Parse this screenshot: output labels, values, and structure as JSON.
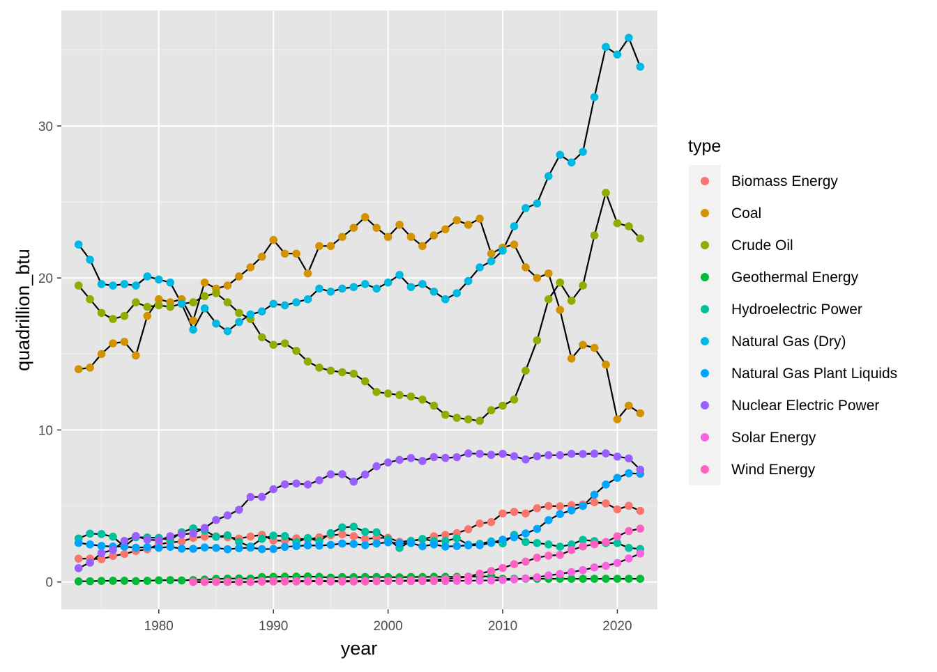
{
  "chart_data": {
    "type": "line",
    "xlabel": "year",
    "ylabel": "quadrillion_btu",
    "xlim": [
      1971.5,
      2023.5
    ],
    "ylim": [
      -1.8,
      37.6
    ],
    "x_ticks": [
      1980,
      1990,
      2000,
      2010,
      2020
    ],
    "y_ticks": [
      0,
      10,
      20,
      30
    ],
    "x_tick_labels": [
      "1980",
      "1990",
      "2000",
      "2010",
      "2020"
    ],
    "y_tick_labels": [
      "0",
      "10",
      "20",
      "30"
    ],
    "grid": true,
    "panel_background": "#e5e5e5",
    "line_color": "#000000",
    "legend": {
      "title": "type",
      "position": "right"
    },
    "series": [
      {
        "name": "Biomass Energy",
        "color": "#F8766D",
        "x": [
          1973,
          1974,
          1975,
          1976,
          1977,
          1978,
          1979,
          1980,
          1981,
          1982,
          1983,
          1984,
          1985,
          1986,
          1987,
          1988,
          1989,
          1990,
          1991,
          1992,
          1993,
          1994,
          1995,
          1996,
          1997,
          1998,
          1999,
          2000,
          2001,
          2002,
          2003,
          2004,
          2005,
          2006,
          2007,
          2008,
          2009,
          2010,
          2011,
          2012,
          2013,
          2014,
          2015,
          2016,
          2017,
          2018,
          2019,
          2020,
          2021,
          2022
        ],
        "y": [
          1.53,
          1.54,
          1.5,
          1.71,
          1.84,
          2.04,
          2.15,
          2.48,
          2.6,
          2.66,
          2.9,
          2.98,
          3.0,
          2.94,
          2.86,
          2.99,
          3.1,
          2.73,
          2.71,
          2.87,
          2.79,
          2.94,
          3.07,
          3.13,
          3.01,
          2.83,
          2.89,
          2.91,
          2.64,
          2.71,
          2.8,
          3.0,
          3.1,
          3.21,
          3.47,
          3.85,
          3.94,
          4.51,
          4.61,
          4.51,
          4.85,
          5.0,
          4.98,
          5.05,
          5.1,
          5.24,
          5.17,
          4.78,
          5.01,
          4.68
        ]
      },
      {
        "name": "Coal",
        "color": "#D39200",
        "x": [
          1973,
          1974,
          1975,
          1976,
          1977,
          1978,
          1979,
          1980,
          1981,
          1982,
          1983,
          1984,
          1985,
          1986,
          1987,
          1988,
          1989,
          1990,
          1991,
          1992,
          1993,
          1994,
          1995,
          1996,
          1997,
          1998,
          1999,
          2000,
          2001,
          2002,
          2003,
          2004,
          2005,
          2006,
          2007,
          2008,
          2009,
          2010,
          2011,
          2012,
          2013,
          2014,
          2015,
          2016,
          2017,
          2018,
          2019,
          2020,
          2021,
          2022
        ],
        "y": [
          14.0,
          14.1,
          15.0,
          15.7,
          15.8,
          14.9,
          17.5,
          18.6,
          18.4,
          18.6,
          17.2,
          19.7,
          19.3,
          19.5,
          20.1,
          20.7,
          21.4,
          22.5,
          21.6,
          21.6,
          20.3,
          22.1,
          22.1,
          22.7,
          23.3,
          24.0,
          23.3,
          22.7,
          23.5,
          22.7,
          22.1,
          22.8,
          23.2,
          23.8,
          23.5,
          23.9,
          21.6,
          22.0,
          22.2,
          20.7,
          20.0,
          20.3,
          17.9,
          14.7,
          15.6,
          15.4,
          14.3,
          10.7,
          11.6,
          11.1
        ]
      },
      {
        "name": "Crude Oil",
        "color": "#93AA00",
        "x": [
          1973,
          1974,
          1975,
          1976,
          1977,
          1978,
          1979,
          1980,
          1981,
          1982,
          1983,
          1984,
          1985,
          1986,
          1987,
          1988,
          1989,
          1990,
          1991,
          1992,
          1993,
          1994,
          1995,
          1996,
          1997,
          1998,
          1999,
          2000,
          2001,
          2002,
          2003,
          2004,
          2005,
          2006,
          2007,
          2008,
          2009,
          2010,
          2011,
          2012,
          2013,
          2014,
          2015,
          2016,
          2017,
          2018,
          2019,
          2020,
          2021,
          2022
        ],
        "y": [
          19.5,
          18.6,
          17.7,
          17.3,
          17.5,
          18.4,
          18.1,
          18.2,
          18.1,
          18.3,
          18.4,
          18.8,
          19.0,
          18.4,
          17.7,
          17.3,
          16.1,
          15.6,
          15.7,
          15.2,
          14.5,
          14.1,
          13.9,
          13.8,
          13.7,
          13.2,
          12.5,
          12.4,
          12.3,
          12.2,
          12.0,
          11.6,
          11.0,
          10.8,
          10.7,
          10.6,
          11.3,
          11.6,
          12.0,
          13.9,
          15.9,
          18.6,
          19.7,
          18.5,
          19.5,
          22.8,
          25.6,
          23.6,
          23.4,
          22.6
        ]
      },
      {
        "name": "Geothermal Energy",
        "color": "#00BA38",
        "x": [
          1973,
          1974,
          1975,
          1976,
          1977,
          1978,
          1979,
          1980,
          1981,
          1982,
          1983,
          1984,
          1985,
          1986,
          1987,
          1988,
          1989,
          1990,
          1991,
          1992,
          1993,
          1994,
          1995,
          1996,
          1997,
          1998,
          1999,
          2000,
          2001,
          2002,
          2003,
          2004,
          2005,
          2006,
          2007,
          2008,
          2009,
          2010,
          2011,
          2012,
          2013,
          2014,
          2015,
          2016,
          2017,
          2018,
          2019,
          2020,
          2021,
          2022
        ],
        "y": [
          0.04,
          0.05,
          0.07,
          0.08,
          0.08,
          0.06,
          0.08,
          0.11,
          0.12,
          0.1,
          0.13,
          0.16,
          0.2,
          0.22,
          0.23,
          0.22,
          0.32,
          0.34,
          0.35,
          0.35,
          0.36,
          0.34,
          0.29,
          0.32,
          0.32,
          0.33,
          0.33,
          0.32,
          0.31,
          0.33,
          0.33,
          0.34,
          0.34,
          0.34,
          0.35,
          0.36,
          0.37,
          0.21,
          0.21,
          0.21,
          0.21,
          0.21,
          0.21,
          0.21,
          0.21,
          0.21,
          0.21,
          0.21,
          0.21,
          0.21
        ]
      },
      {
        "name": "Hydroelectric Power",
        "color": "#00C19F",
        "x": [
          1973,
          1974,
          1975,
          1976,
          1977,
          1978,
          1979,
          1980,
          1981,
          1982,
          1983,
          1984,
          1985,
          1986,
          1987,
          1988,
          1989,
          1990,
          1991,
          1992,
          1993,
          1994,
          1995,
          1996,
          1997,
          1998,
          1999,
          2000,
          2001,
          2002,
          2003,
          2004,
          2005,
          2006,
          2007,
          2008,
          2009,
          2010,
          2011,
          2012,
          2013,
          2014,
          2015,
          2016,
          2017,
          2018,
          2019,
          2020,
          2021,
          2022
        ],
        "y": [
          2.86,
          3.18,
          3.15,
          2.98,
          2.33,
          2.94,
          2.93,
          2.9,
          2.76,
          3.27,
          3.53,
          3.39,
          2.97,
          3.07,
          2.63,
          2.33,
          2.84,
          3.05,
          3.02,
          2.62,
          2.89,
          2.68,
          3.21,
          3.59,
          3.64,
          3.3,
          3.27,
          2.81,
          2.24,
          2.69,
          2.83,
          2.69,
          2.7,
          2.87,
          2.45,
          2.51,
          2.67,
          2.54,
          3.1,
          2.63,
          2.56,
          2.47,
          2.32,
          2.47,
          2.77,
          2.69,
          2.56,
          2.56,
          2.24,
          2.17
        ]
      },
      {
        "name": "Natural Gas (Dry)",
        "color": "#00B9E3",
        "x": [
          1973,
          1974,
          1975,
          1976,
          1977,
          1978,
          1979,
          1980,
          1981,
          1982,
          1983,
          1984,
          1985,
          1986,
          1987,
          1988,
          1989,
          1990,
          1991,
          1992,
          1993,
          1994,
          1995,
          1996,
          1997,
          1998,
          1999,
          2000,
          2001,
          2002,
          2003,
          2004,
          2005,
          2006,
          2007,
          2008,
          2009,
          2010,
          2011,
          2012,
          2013,
          2014,
          2015,
          2016,
          2017,
          2018,
          2019,
          2020,
          2021,
          2022
        ],
        "y": [
          22.2,
          21.2,
          19.6,
          19.5,
          19.6,
          19.5,
          20.1,
          19.9,
          19.7,
          18.3,
          16.6,
          18.0,
          17.0,
          16.5,
          17.1,
          17.6,
          17.8,
          18.3,
          18.2,
          18.4,
          18.6,
          19.3,
          19.1,
          19.3,
          19.4,
          19.6,
          19.3,
          19.7,
          20.2,
          19.4,
          19.6,
          19.1,
          18.6,
          19.0,
          19.8,
          20.7,
          21.1,
          21.8,
          23.4,
          24.6,
          24.9,
          26.7,
          28.1,
          27.6,
          28.3,
          31.9,
          35.2,
          34.7,
          35.8,
          33.9
        ]
      },
      {
        "name": "Natural Gas Plant Liquids",
        "color": "#00A5FF",
        "x": [
          1973,
          1974,
          1975,
          1976,
          1977,
          1978,
          1979,
          1980,
          1981,
          1982,
          1983,
          1984,
          1985,
          1986,
          1987,
          1988,
          1989,
          1990,
          1991,
          1992,
          1993,
          1994,
          1995,
          1996,
          1997,
          1998,
          1999,
          2000,
          2001,
          2002,
          2003,
          2004,
          2005,
          2006,
          2007,
          2008,
          2009,
          2010,
          2011,
          2012,
          2013,
          2014,
          2015,
          2016,
          2017,
          2018,
          2019,
          2020,
          2021,
          2022
        ],
        "y": [
          2.57,
          2.47,
          2.37,
          2.33,
          2.33,
          2.25,
          2.29,
          2.25,
          2.31,
          2.19,
          2.18,
          2.27,
          2.24,
          2.15,
          2.22,
          2.26,
          2.16,
          2.17,
          2.31,
          2.36,
          2.41,
          2.39,
          2.44,
          2.53,
          2.5,
          2.42,
          2.53,
          2.61,
          2.55,
          2.56,
          2.35,
          2.47,
          2.33,
          2.36,
          2.41,
          2.42,
          2.57,
          2.78,
          2.94,
          3.19,
          3.49,
          4.07,
          4.47,
          4.71,
          5.0,
          5.74,
          6.41,
          6.85,
          7.15,
          7.12
        ]
      },
      {
        "name": "Nuclear Electric Power",
        "color": "#995FFF",
        "x": [
          1973,
          1974,
          1975,
          1976,
          1977,
          1978,
          1979,
          1980,
          1981,
          1982,
          1983,
          1984,
          1985,
          1986,
          1987,
          1988,
          1989,
          1990,
          1991,
          1992,
          1993,
          1994,
          1995,
          1996,
          1997,
          1998,
          1999,
          2000,
          2001,
          2002,
          2003,
          2004,
          2005,
          2006,
          2007,
          2008,
          2009,
          2010,
          2011,
          2012,
          2013,
          2014,
          2015,
          2016,
          2017,
          2018,
          2019,
          2020,
          2021,
          2022
        ],
        "y": [
          0.91,
          1.27,
          1.9,
          2.11,
          2.7,
          3.02,
          2.78,
          2.74,
          3.01,
          3.13,
          3.2,
          3.55,
          4.08,
          4.38,
          4.75,
          5.59,
          5.6,
          6.1,
          6.42,
          6.48,
          6.41,
          6.69,
          7.08,
          7.09,
          6.6,
          7.07,
          7.61,
          7.86,
          8.03,
          8.15,
          7.96,
          8.22,
          8.16,
          8.21,
          8.46,
          8.43,
          8.36,
          8.43,
          8.27,
          8.06,
          8.27,
          8.34,
          8.34,
          8.43,
          8.42,
          8.44,
          8.46,
          8.25,
          8.13,
          7.39
        ]
      },
      {
        "name": "Solar Energy",
        "color": "#F763E0",
        "x": [
          1983,
          1984,
          1985,
          1986,
          1987,
          1988,
          1989,
          1990,
          1991,
          1992,
          1993,
          1994,
          1995,
          1996,
          1997,
          1998,
          1999,
          2000,
          2001,
          2002,
          2003,
          2004,
          2005,
          2006,
          2007,
          2008,
          2009,
          2010,
          2011,
          2012,
          2013,
          2014,
          2015,
          2016,
          2017,
          2018,
          2019,
          2020,
          2021,
          2022
        ],
        "y": [
          0.0,
          0.0,
          0.0,
          0.0,
          0.0,
          0.0,
          0.06,
          0.06,
          0.06,
          0.06,
          0.07,
          0.07,
          0.07,
          0.07,
          0.07,
          0.07,
          0.07,
          0.07,
          0.06,
          0.06,
          0.06,
          0.06,
          0.06,
          0.07,
          0.08,
          0.09,
          0.1,
          0.13,
          0.17,
          0.23,
          0.31,
          0.43,
          0.53,
          0.65,
          0.78,
          0.96,
          1.06,
          1.25,
          1.55,
          1.87
        ]
      },
      {
        "name": "Wind Energy",
        "color": "#FF61C3",
        "x": [
          1983,
          1984,
          1985,
          1986,
          1987,
          1988,
          1989,
          1990,
          1991,
          1992,
          1993,
          1994,
          1995,
          1996,
          1997,
          1998,
          1999,
          2000,
          2001,
          2002,
          2003,
          2004,
          2005,
          2006,
          2007,
          2008,
          2009,
          2010,
          2011,
          2012,
          2013,
          2014,
          2015,
          2016,
          2017,
          2018,
          2019,
          2020,
          2021,
          2022
        ],
        "y": [
          0.0,
          0.0,
          0.0,
          0.0,
          0.0,
          0.0,
          0.02,
          0.03,
          0.03,
          0.03,
          0.03,
          0.04,
          0.03,
          0.03,
          0.03,
          0.03,
          0.05,
          0.06,
          0.07,
          0.11,
          0.12,
          0.14,
          0.18,
          0.26,
          0.34,
          0.55,
          0.72,
          0.92,
          1.17,
          1.34,
          1.6,
          1.73,
          1.78,
          2.1,
          2.34,
          2.48,
          2.63,
          3.0,
          3.35,
          3.51
        ]
      }
    ]
  }
}
